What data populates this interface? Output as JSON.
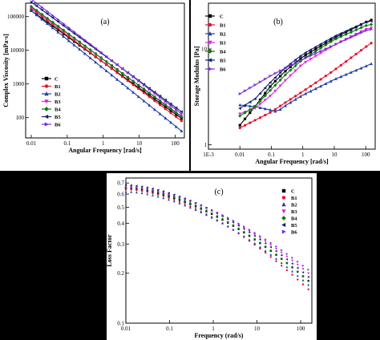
{
  "colors": {
    "C": "#000000",
    "B1": "#e8102a",
    "B2": "#1f3fa8",
    "B3": "#e020e0",
    "B4": "#0d7a0d",
    "B5": "#14206e",
    "B6": "#7a2fd0"
  },
  "legend_names": [
    "C",
    "B1",
    "B2",
    "B3",
    "B4",
    "B5",
    "B6"
  ],
  "chart_data": [
    {
      "type": "line",
      "panel_label": "(a)",
      "xlabel": "Angular Frequency [rad/s]",
      "ylabel": "Complex Viscosity [mPa·s]",
      "xscale": "log",
      "yscale": "log",
      "xlim": [
        0.007,
        180
      ],
      "ylim": [
        25,
        250000
      ],
      "xticks": [
        0.01,
        0.1,
        1,
        10,
        100
      ],
      "xtick_labels": [
        "0.01",
        "0.1",
        "1",
        "10",
        "100"
      ],
      "yticks": [
        100,
        1000,
        10000,
        100000
      ],
      "ytick_labels": [
        "100",
        "1000",
        "10000",
        "100000"
      ],
      "legend_position": "lower-left",
      "series": [
        {
          "name": "C",
          "x0": 0.01,
          "x1": 150,
          "y0": 150000,
          "y1": 95
        },
        {
          "name": "B1",
          "x0": 0.01,
          "x1": 150,
          "y0": 175000,
          "y1": 80
        },
        {
          "name": "B2",
          "x0": 0.01,
          "x1": 150,
          "y0": 150000,
          "y1": 40
        },
        {
          "name": "B3",
          "x0": 0.01,
          "x1": 150,
          "y0": 190000,
          "y1": 110
        },
        {
          "name": "B4",
          "x0": 0.01,
          "x1": 150,
          "y0": 200000,
          "y1": 105
        },
        {
          "name": "B5",
          "x0": 0.01,
          "x1": 150,
          "y0": 270000,
          "y1": 150
        },
        {
          "name": "B6",
          "x0": 0.01,
          "x1": 150,
          "y0": 330000,
          "y1": 130
        }
      ]
    },
    {
      "type": "line",
      "panel_label": "(b)",
      "xlabel": "Angular Frequency [rad/s]",
      "ylabel": "Storage Modulus [Pa]",
      "xscale": "log",
      "yscale": "log",
      "xlim": [
        0.001,
        200
      ],
      "ylim": [
        0.9,
        30
      ],
      "xticks": [
        0.001,
        0.01,
        0.1,
        1,
        10,
        100
      ],
      "xtick_labels": [
        "1E-3",
        "0.01",
        "0.1",
        "1",
        "10",
        "100"
      ],
      "yticks": [
        1,
        10
      ],
      "ytick_labels": [
        "1",
        "10"
      ],
      "legend_position": "upper-left",
      "series": [
        {
          "name": "C",
          "points": [
            [
              0.01,
              1.6
            ],
            [
              0.03,
              2.5
            ],
            [
              0.1,
              4.2
            ],
            [
              0.3,
              6.0
            ],
            [
              1,
              8.3
            ],
            [
              10,
              13
            ],
            [
              100,
              19
            ],
            [
              150,
              20
            ]
          ]
        },
        {
          "name": "B1",
          "points": [
            [
              0.01,
              1.5
            ],
            [
              0.03,
              1.8
            ],
            [
              0.1,
              2.2
            ],
            [
              0.3,
              2.8
            ],
            [
              1,
              3.6
            ],
            [
              10,
              6.0
            ],
            [
              100,
              10.5
            ],
            [
              150,
              11.5
            ]
          ]
        },
        {
          "name": "B2",
          "points": [
            [
              0.01,
              2.6
            ],
            [
              0.03,
              2.5
            ],
            [
              0.1,
              2.3
            ],
            [
              0.15,
              2.2
            ],
            [
              0.3,
              2.6
            ],
            [
              1,
              3.3
            ],
            [
              10,
              4.8
            ],
            [
              100,
              6.6
            ],
            [
              150,
              7.0
            ]
          ]
        },
        {
          "name": "B3",
          "points": [
            [
              0.01,
              2.1
            ],
            [
              0.03,
              2.4
            ],
            [
              0.1,
              3.3
            ],
            [
              0.3,
              4.8
            ],
            [
              1,
              7.0
            ],
            [
              10,
              11
            ],
            [
              100,
              16
            ],
            [
              150,
              16.5
            ]
          ]
        },
        {
          "name": "B4",
          "points": [
            [
              0.01,
              2.0
            ],
            [
              0.03,
              2.5
            ],
            [
              0.1,
              3.8
            ],
            [
              0.3,
              5.5
            ],
            [
              1,
              7.8
            ],
            [
              10,
              12.5
            ],
            [
              100,
              17.5
            ],
            [
              150,
              18
            ]
          ]
        },
        {
          "name": "B5",
          "points": [
            [
              0.01,
              2.4
            ],
            [
              0.03,
              3.0
            ],
            [
              0.1,
              4.6
            ],
            [
              0.3,
              6.5
            ],
            [
              1,
              8.8
            ],
            [
              10,
              13.5
            ],
            [
              100,
              19
            ],
            [
              150,
              19.5
            ]
          ]
        },
        {
          "name": "B6",
          "points": [
            [
              0.01,
              3.4
            ],
            [
              0.03,
              4.2
            ],
            [
              0.1,
              5.3
            ],
            [
              0.3,
              6.4
            ],
            [
              1,
              7.8
            ],
            [
              10,
              11
            ],
            [
              100,
              15.5
            ],
            [
              150,
              16
            ]
          ]
        }
      ]
    },
    {
      "type": "scatter",
      "panel_label": "(c)",
      "xlabel": "Frequency (rad/s)",
      "ylabel": "Loss Factor",
      "xscale": "log",
      "yscale": "log",
      "xlim": [
        0.01,
        180
      ],
      "ylim": [
        0.1,
        0.75
      ],
      "xticks": [
        0.01,
        0.1,
        1,
        10,
        100
      ],
      "xtick_labels": [
        "0.01",
        "0.1",
        "1",
        "10",
        "100"
      ],
      "yticks": [
        0.1,
        0.2,
        0.3,
        0.4,
        0.5,
        0.6,
        0.7
      ],
      "ytick_labels": [
        "0.1",
        "0.2",
        "0.3",
        "0.4",
        "0.5",
        "0.6",
        "0.7"
      ],
      "legend_position": "upper-right",
      "series": [
        {
          "name": "C",
          "start": 0.65,
          "end": 0.18,
          "shape": "square"
        },
        {
          "name": "B1",
          "start": 0.64,
          "end": 0.16,
          "shape": "circle"
        },
        {
          "name": "B2",
          "start": 0.62,
          "end": 0.17,
          "shape": "triangle-up"
        },
        {
          "name": "B3",
          "start": 0.67,
          "end": 0.2,
          "shape": "triangle-down"
        },
        {
          "name": "B4",
          "start": 0.66,
          "end": 0.18,
          "shape": "diamond"
        },
        {
          "name": "B5",
          "start": 0.68,
          "end": 0.19,
          "shape": "triangle-left"
        },
        {
          "name": "B6",
          "start": 0.66,
          "end": 0.21,
          "shape": "triangle-right"
        }
      ]
    }
  ]
}
